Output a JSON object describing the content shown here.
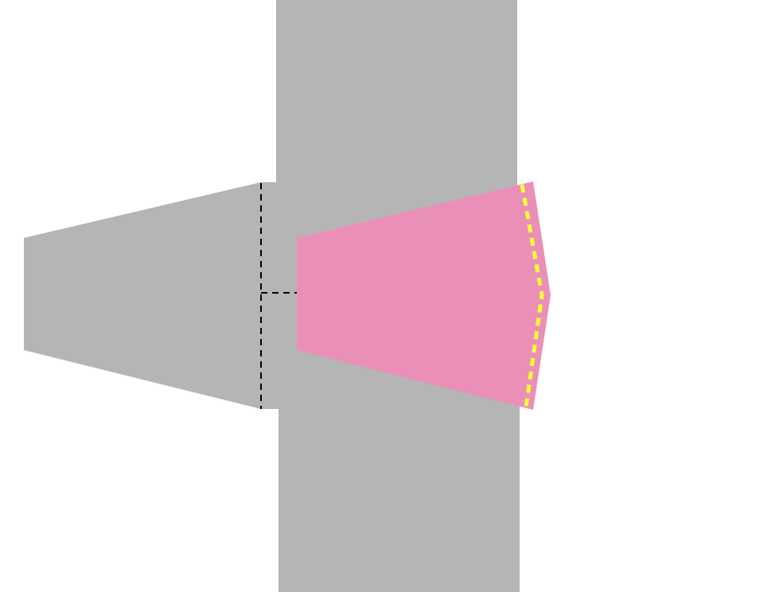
{
  "map": {
    "background_color": "#ffffff",
    "road_color": "#b5b5b5",
    "highlight_color": "#ea8fb8",
    "lane_marking_color": "#000000",
    "boundary_marking_color": "#ffff33",
    "roads": [
      {
        "id": "vertical-road-north",
        "orientation": "vertical"
      },
      {
        "id": "vertical-road-south",
        "orientation": "vertical"
      },
      {
        "id": "west-approach",
        "orientation": "horizontal"
      },
      {
        "id": "junction-core",
        "orientation": "junction"
      }
    ],
    "highlighted_region": {
      "id": "eastbound-lane-area",
      "shape": "tapered-polygon"
    },
    "markings": [
      {
        "id": "stop-line",
        "style": "dashed"
      },
      {
        "id": "lane-divider",
        "style": "dashed"
      },
      {
        "id": "boundary-line",
        "style": "dashed"
      }
    ]
  }
}
